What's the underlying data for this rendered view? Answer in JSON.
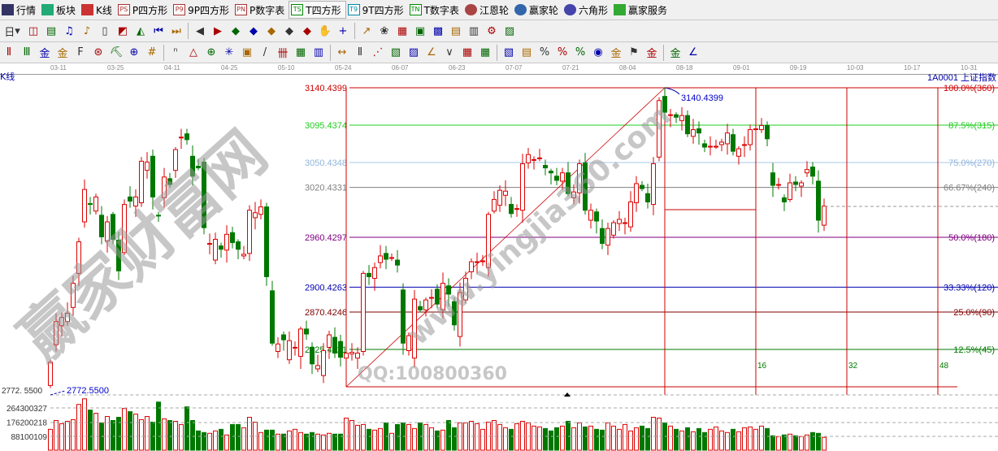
{
  "menu": [
    {
      "label": "行情",
      "icon": "grid-icon"
    },
    {
      "label": "板块",
      "icon": "blocks-icon"
    },
    {
      "label": "K线",
      "icon": "candles-icon"
    },
    {
      "label": "P四方形",
      "icon": "p-square-icon",
      "tag": "PS"
    },
    {
      "label": "9P四方形",
      "icon": "9p-square-icon",
      "tag": "P9"
    },
    {
      "label": "P数字表",
      "icon": "p-number-table-icon",
      "tag": "PN"
    },
    {
      "label": "T四方形",
      "icon": "t-square-icon",
      "tag": "TS",
      "active": true
    },
    {
      "label": "9T四方形",
      "icon": "9t-square-icon",
      "tag": "T9"
    },
    {
      "label": "T数字表",
      "icon": "t-number-table-icon",
      "tag": "TN"
    },
    {
      "label": "江恩轮",
      "icon": "gann-wheel-icon"
    },
    {
      "label": "赢家轮",
      "icon": "winner-wheel-icon"
    },
    {
      "label": "六角形",
      "icon": "hexagon-icon"
    },
    {
      "label": "赢家服务",
      "icon": "dollar-icon"
    }
  ],
  "toolbar2": {
    "period": "日",
    "tools": [
      "window-icon",
      "notepad-icon",
      "bars3-icon",
      "bars9-icon",
      "candle-icon",
      "chart-style-icon",
      "fan-color-icon",
      "first-icon",
      "last-icon",
      "prev-icon",
      "next-icon",
      "left-diamond-icon",
      "right-diamond-icon",
      "expand-diamond-icon",
      "shrink-diamond-icon",
      "center-diamond-icon",
      "hand-icon",
      "crosshair-icon",
      "draw-line-icon",
      "figure-icon",
      "chart-icon",
      "calendar-icon",
      "calculator-icon",
      "report-icon",
      "save-icon",
      "network-icon",
      "print-icon"
    ]
  },
  "toolbar3": {
    "tools": [
      "pen-icon",
      "parallel-icon",
      "gold-icon",
      "gold2-icon",
      "f-icon",
      "spiral-icon",
      "pen-grid-icon",
      "circle-grid-icon",
      "hash-icon",
      "n2-icon",
      "triangle-icon",
      "target-icon",
      "star-icon",
      "box-icon",
      "slash-icon",
      "gann-icon",
      "grid-red-icon",
      "ruler-icon",
      "width-icon",
      "bracket-icon",
      "fan-icon",
      "fan-box-icon",
      "fan-diag-icon",
      "angle-icon",
      "zigzag-icon",
      "grid-a-icon",
      "grid-b-icon",
      "hatch-icon",
      "table-icon",
      "percent-red-icon",
      "percent-icon",
      "percent-line-icon",
      "coin-icon",
      "gold-line-icon",
      "flag-icon",
      "up-icon",
      "gold3-icon",
      "angle2-icon"
    ]
  },
  "dates": [
    "03-11",
    "03-25",
    "04-11",
    "04-25",
    "05-10",
    "05-24",
    "06-07",
    "06-23",
    "07-07",
    "07-21",
    "08-04",
    "08-18",
    "09-01",
    "09-19",
    "10-03",
    "10-17",
    "10-31"
  ],
  "panel_label": "K线",
  "symbol": "1A0001  上证指数",
  "high_annotation": "3140.4399",
  "low_annotation": "2772.5500",
  "low_axis_label": "2772. 5500",
  "volume_axis": [
    "264300327",
    "176200218",
    "88100109"
  ],
  "cycle_labels": [
    "16",
    "32",
    "48"
  ],
  "watermark": {
    "brand": "赢家财富网",
    "site": "www.yingjia360.com",
    "qq": "QQ:100800360"
  },
  "colors": {
    "up": "#dd0000",
    "down": "#007800",
    "frame": "#cc0000"
  },
  "levels": [
    {
      "price": "3140.4399",
      "label": "100.0%(360)",
      "color": "#cc0000"
    },
    {
      "price": "3095.4374",
      "label": "87.5%(315)",
      "color": "#22cc22"
    },
    {
      "price": "3050.4348",
      "label": "75.0%(270)",
      "color": "#a8c8e8"
    },
    {
      "price": "3020.4331",
      "label": "66.67%(240)",
      "color": "#808080"
    },
    {
      "price": "2960.4297",
      "label": "50.0%(180)",
      "color": "#800080"
    },
    {
      "price": "2900.4263",
      "label": "33.33%(120)",
      "color": "#0000b0"
    },
    {
      "price": "2870.4246",
      "label": "25.0%(90)",
      "color": "#800000"
    },
    {
      "price": "2825.4221",
      "label": "12.5%(45)",
      "color": "#007800"
    }
  ],
  "chart_data": {
    "type": "candlestick",
    "ohlc_note": "open/close pairs",
    "candles": [
      [
        2782,
        2810
      ],
      [
        2831,
        2859
      ],
      [
        2854,
        2864
      ],
      [
        2859,
        2869
      ],
      [
        2876,
        2905
      ],
      [
        2917,
        2955
      ],
      [
        2979,
        3018
      ],
      [
        3001,
        3000
      ],
      [
        2992,
        3009
      ],
      [
        2987,
        2961
      ],
      [
        2956,
        2979
      ],
      [
        2988,
        2958
      ],
      [
        2957,
        2920
      ],
      [
        2942,
        3000
      ],
      [
        3009,
        3004
      ],
      [
        2998,
        3009
      ],
      [
        3002,
        3052
      ],
      [
        3041,
        3051
      ],
      [
        3058,
        3009
      ],
      [
        2987,
        2986
      ],
      [
        3008,
        3033
      ],
      [
        3031,
        3024
      ],
      [
        3041,
        3066
      ],
      [
        3081,
        3081
      ],
      [
        3085,
        3078
      ],
      [
        3058,
        3034
      ],
      [
        3046,
        3044
      ],
      [
        3051,
        2972
      ],
      [
        2953,
        2953
      ],
      [
        2933,
        2958
      ],
      [
        2950,
        2946
      ],
      [
        2945,
        2964
      ],
      [
        2966,
        2954
      ],
      [
        2955,
        2946
      ],
      [
        2938,
        2940
      ],
      [
        2941,
        2993
      ],
      [
        2984,
        2990
      ],
      [
        2988,
        2997
      ],
      [
        2997,
        2913
      ],
      [
        2896,
        2833
      ],
      [
        2823,
        2832
      ],
      [
        2843,
        2837
      ],
      [
        2813,
        2836
      ],
      [
        2828,
        2828
      ],
      [
        2817,
        2850
      ],
      [
        2850,
        2844
      ],
      [
        2828,
        2808
      ],
      [
        2802,
        2806
      ],
      [
        2794,
        2824
      ],
      [
        2828,
        2843
      ],
      [
        2840,
        2821
      ],
      [
        2835,
        2816
      ],
      [
        2815,
        2821
      ],
      [
        2820,
        2822
      ],
      [
        2815,
        2821
      ],
      [
        2823,
        2917
      ],
      [
        2917,
        2913
      ],
      [
        2911,
        2924
      ],
      [
        2930,
        2938
      ],
      [
        2941,
        2934
      ],
      [
        2936,
        2936
      ],
      [
        2933,
        2927
      ],
      [
        2897,
        2833
      ],
      [
        2824,
        2842
      ],
      [
        2815,
        2886
      ],
      [
        2877,
        2873
      ],
      [
        2873,
        2885
      ],
      [
        2888,
        2888
      ],
      [
        2898,
        2880
      ],
      [
        2873,
        2905
      ],
      [
        2902,
        2892
      ],
      [
        2883,
        2855
      ],
      [
        2841,
        2894
      ],
      [
        2885,
        2911
      ],
      [
        2919,
        2931
      ],
      [
        2931,
        2931
      ],
      [
        2932,
        2932
      ],
      [
        2924,
        2988
      ],
      [
        2992,
        3006
      ],
      [
        2999,
        3017
      ],
      [
        3011,
        3016
      ],
      [
        3000,
        2989
      ],
      [
        2995,
        2995
      ],
      [
        2993,
        3049
      ],
      [
        3050,
        3060
      ],
      [
        3054,
        3054
      ],
      [
        3056,
        3056
      ],
      [
        3047,
        3044
      ],
      [
        3040,
        3038
      ],
      [
        3034,
        3029
      ],
      [
        3028,
        3038
      ],
      [
        3038,
        3013
      ],
      [
        3008,
        3015
      ],
      [
        3014,
        3049
      ],
      [
        3050,
        2993
      ],
      [
        2981,
        2993
      ],
      [
        2991,
        2980
      ],
      [
        2971,
        2953
      ],
      [
        2951,
        2971
      ],
      [
        2963,
        2978
      ],
      [
        2977,
        2982
      ],
      [
        2978,
        2978
      ],
      [
        2973,
        3003
      ],
      [
        3002,
        3025
      ],
      [
        3023,
        3019
      ],
      [
        3013,
        3003
      ],
      [
        3000,
        3049
      ],
      [
        3057,
        3125
      ],
      [
        3130,
        3111
      ],
      [
        3108,
        3108
      ],
      [
        3108,
        3105
      ],
      [
        3101,
        3107
      ],
      [
        3107,
        3085
      ],
      [
        3082,
        3090
      ],
      [
        3091,
        3086
      ],
      [
        3073,
        3069
      ],
      [
        3070,
        3070
      ],
      [
        3070,
        3070
      ],
      [
        3072,
        3075
      ],
      [
        3073,
        3086
      ],
      [
        3084,
        3064
      ],
      [
        3058,
        3067
      ],
      [
        3072,
        3072
      ],
      [
        3072,
        3090
      ],
      [
        3091,
        3091
      ],
      [
        3090,
        3095
      ],
      [
        3095,
        3079
      ],
      [
        3038,
        3023
      ],
      [
        3024,
        3024
      ],
      [
        3008,
        3003
      ],
      [
        3006,
        3026
      ],
      [
        3027,
        3024
      ],
      [
        3022,
        3026
      ],
      [
        3038,
        3042
      ],
      [
        3045,
        3034
      ],
      [
        3028,
        2981
      ],
      [
        2975,
        2998
      ]
    ],
    "volume_millions": [
      130,
      185,
      165,
      180,
      190,
      285,
      320,
      250,
      230,
      170,
      210,
      185,
      205,
      260,
      240,
      225,
      190,
      210,
      175,
      300,
      195,
      185,
      180,
      160,
      270,
      185,
      120,
      110,
      105,
      120,
      130,
      95,
      160,
      160,
      140,
      205,
      175,
      110,
      125,
      125,
      100,
      100,
      120,
      130,
      110,
      100,
      110,
      100,
      95,
      105,
      100,
      100,
      200,
      185,
      155,
      160,
      130,
      125,
      135,
      170,
      105,
      160,
      170,
      160,
      135,
      170,
      160,
      140,
      120,
      125,
      185,
      140,
      170,
      170,
      180,
      165,
      130,
      175,
      185,
      160,
      140,
      130,
      165,
      180,
      170,
      150,
      145,
      135,
      120,
      140,
      150,
      180,
      140,
      170,
      145,
      150,
      130,
      125,
      170,
      150,
      130,
      160,
      120,
      140,
      150,
      135,
      205,
      200,
      170,
      150,
      130,
      120,
      140,
      115,
      135,
      110,
      130,
      145,
      120,
      110,
      130,
      115,
      140,
      145,
      130,
      150,
      135,
      90,
      85,
      95,
      100,
      90,
      85,
      95,
      110,
      105,
      80
    ],
    "price_range": [
      2772.55,
      3140.4399
    ],
    "swing_low": 2772.55,
    "swing_high": 3140.4399
  }
}
